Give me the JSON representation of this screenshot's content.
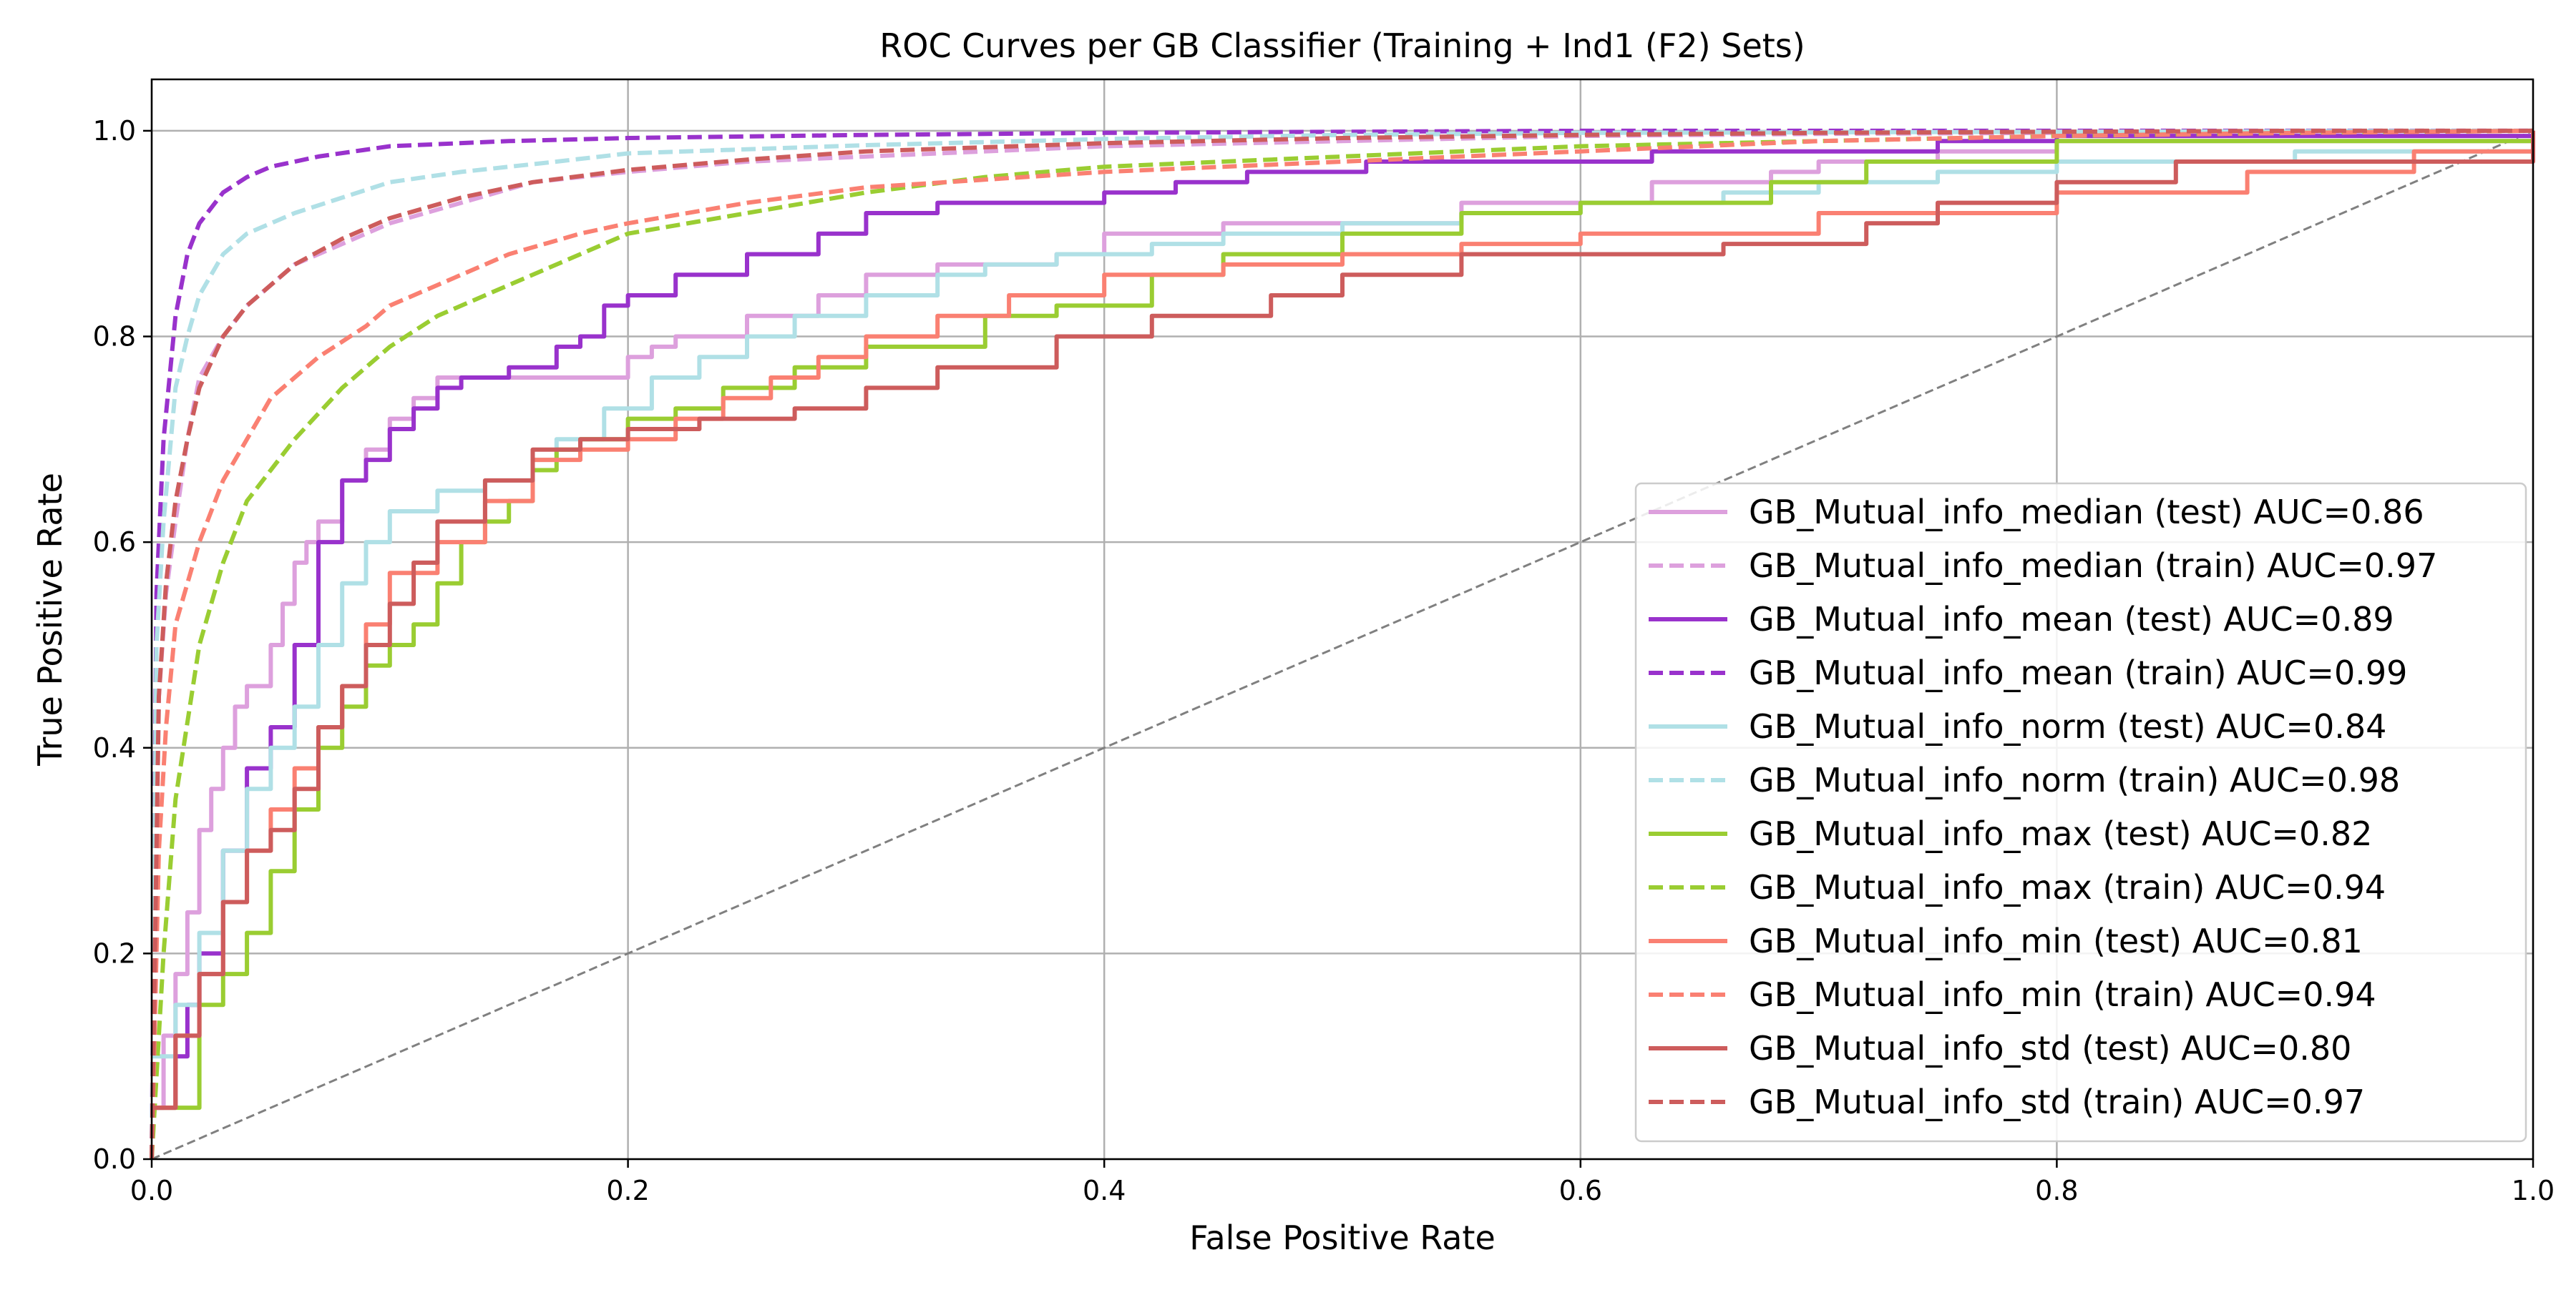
{
  "chart_data": {
    "type": "line",
    "title": "ROC Curves per GB Classifier (Training + Ind1 (F2) Sets)",
    "xlabel": "False Positive Rate",
    "ylabel": "True Positive Rate",
    "xlim": [
      0,
      1
    ],
    "ylim": [
      0,
      1.0
    ],
    "xticks": [
      "0.0",
      "0.2",
      "0.4",
      "0.6",
      "0.8",
      "1.0"
    ],
    "yticks": [
      "0.0",
      "0.2",
      "0.4",
      "0.6",
      "0.8",
      "1.0"
    ],
    "grid": true,
    "legend_position": "lower-right",
    "diagonal": {
      "x": [
        0,
        1
      ],
      "y": [
        0,
        1
      ],
      "color": "#808080",
      "style": "dashed"
    },
    "series": [
      {
        "name": "GB_Mutual_info_median (test) AUC=0.86",
        "color": "#DDA0DD",
        "style": "solid",
        "step": true,
        "x": [
          0,
          0.005,
          0.01,
          0.015,
          0.02,
          0.025,
          0.03,
          0.035,
          0.04,
          0.05,
          0.055,
          0.06,
          0.065,
          0.07,
          0.08,
          0.09,
          0.1,
          0.11,
          0.12,
          0.15,
          0.2,
          0.21,
          0.22,
          0.25,
          0.28,
          0.3,
          0.33,
          0.38,
          0.4,
          0.45,
          0.55,
          0.63,
          0.68,
          0.7,
          0.75,
          0.8,
          1.0
        ],
        "y": [
          0.05,
          0.12,
          0.18,
          0.24,
          0.32,
          0.36,
          0.4,
          0.44,
          0.46,
          0.5,
          0.54,
          0.58,
          0.6,
          0.62,
          0.66,
          0.69,
          0.72,
          0.74,
          0.76,
          0.76,
          0.78,
          0.79,
          0.8,
          0.82,
          0.84,
          0.86,
          0.87,
          0.88,
          0.9,
          0.91,
          0.93,
          0.95,
          0.96,
          0.97,
          0.98,
          0.99,
          1.0
        ]
      },
      {
        "name": "GB_Mutual_info_median (train) AUC=0.97",
        "color": "#DDA0DD",
        "style": "dashed",
        "step": false,
        "x": [
          0,
          0.003,
          0.006,
          0.01,
          0.015,
          0.02,
          0.03,
          0.04,
          0.06,
          0.08,
          0.1,
          0.13,
          0.16,
          0.2,
          0.25,
          0.3,
          0.4,
          0.5,
          0.6,
          0.7,
          0.8,
          0.9,
          1.0
        ],
        "y": [
          0,
          0.45,
          0.55,
          0.62,
          0.7,
          0.76,
          0.8,
          0.83,
          0.87,
          0.89,
          0.91,
          0.93,
          0.95,
          0.96,
          0.97,
          0.975,
          0.985,
          0.99,
          0.995,
          0.997,
          0.998,
          0.999,
          1.0
        ]
      },
      {
        "name": "GB_Mutual_info_mean (test) AUC=0.89",
        "color": "#9932CC",
        "style": "solid",
        "step": true,
        "x": [
          0,
          0.01,
          0.015,
          0.02,
          0.03,
          0.04,
          0.05,
          0.06,
          0.07,
          0.08,
          0.09,
          0.1,
          0.11,
          0.12,
          0.13,
          0.15,
          0.17,
          0.18,
          0.19,
          0.2,
          0.22,
          0.25,
          0.28,
          0.3,
          0.33,
          0.4,
          0.43,
          0.46,
          0.51,
          0.55,
          0.63,
          0.7,
          0.75,
          0.8,
          1.0
        ],
        "y": [
          0.05,
          0.1,
          0.15,
          0.2,
          0.3,
          0.38,
          0.42,
          0.5,
          0.6,
          0.66,
          0.68,
          0.71,
          0.73,
          0.75,
          0.76,
          0.77,
          0.79,
          0.8,
          0.83,
          0.84,
          0.86,
          0.88,
          0.9,
          0.92,
          0.93,
          0.94,
          0.95,
          0.96,
          0.97,
          0.97,
          0.98,
          0.98,
          0.99,
          0.995,
          1.0
        ]
      },
      {
        "name": "GB_Mutual_info_mean (train) AUC=0.99",
        "color": "#9932CC",
        "style": "dashed",
        "step": false,
        "x": [
          0,
          0.002,
          0.005,
          0.01,
          0.015,
          0.02,
          0.03,
          0.04,
          0.05,
          0.07,
          0.1,
          0.15,
          0.2,
          0.3,
          0.4,
          0.5,
          0.6,
          0.8,
          1.0
        ],
        "y": [
          0,
          0.55,
          0.7,
          0.82,
          0.88,
          0.91,
          0.94,
          0.955,
          0.965,
          0.975,
          0.985,
          0.99,
          0.993,
          0.996,
          0.998,
          0.999,
          1.0,
          1.0,
          1.0
        ]
      },
      {
        "name": "GB_Mutual_info_norm (test) AUC=0.84",
        "color": "#B0E0E6",
        "style": "solid",
        "step": true,
        "x": [
          0,
          0.01,
          0.02,
          0.03,
          0.04,
          0.05,
          0.06,
          0.07,
          0.08,
          0.09,
          0.1,
          0.12,
          0.14,
          0.16,
          0.17,
          0.19,
          0.21,
          0.23,
          0.25,
          0.27,
          0.3,
          0.33,
          0.35,
          0.38,
          0.42,
          0.45,
          0.5,
          0.55,
          0.6,
          0.66,
          0.7,
          0.75,
          0.8,
          0.9,
          1.0
        ],
        "y": [
          0.1,
          0.15,
          0.22,
          0.3,
          0.36,
          0.4,
          0.44,
          0.5,
          0.56,
          0.6,
          0.63,
          0.65,
          0.66,
          0.68,
          0.7,
          0.73,
          0.76,
          0.78,
          0.8,
          0.82,
          0.84,
          0.86,
          0.87,
          0.88,
          0.89,
          0.9,
          0.91,
          0.92,
          0.93,
          0.94,
          0.95,
          0.96,
          0.97,
          0.98,
          1.0
        ]
      },
      {
        "name": "GB_Mutual_info_norm (train) AUC=0.98",
        "color": "#B0E0E6",
        "style": "dashed",
        "step": false,
        "x": [
          0,
          0.002,
          0.005,
          0.01,
          0.015,
          0.02,
          0.03,
          0.04,
          0.06,
          0.08,
          0.1,
          0.13,
          0.17,
          0.2,
          0.3,
          0.4,
          0.5,
          0.6,
          0.8,
          1.0
        ],
        "y": [
          0,
          0.5,
          0.62,
          0.75,
          0.8,
          0.84,
          0.88,
          0.9,
          0.92,
          0.935,
          0.95,
          0.96,
          0.97,
          0.978,
          0.986,
          0.992,
          0.996,
          0.998,
          0.999,
          1.0
        ]
      },
      {
        "name": "GB_Mutual_info_max (test) AUC=0.82",
        "color": "#9ACD32",
        "style": "solid",
        "step": true,
        "x": [
          0,
          0.02,
          0.03,
          0.04,
          0.05,
          0.06,
          0.07,
          0.08,
          0.09,
          0.1,
          0.11,
          0.12,
          0.13,
          0.14,
          0.15,
          0.16,
          0.17,
          0.18,
          0.2,
          0.22,
          0.24,
          0.27,
          0.3,
          0.35,
          0.38,
          0.42,
          0.45,
          0.5,
          0.55,
          0.6,
          0.68,
          0.72,
          0.8,
          1.0
        ],
        "y": [
          0.05,
          0.15,
          0.18,
          0.22,
          0.28,
          0.34,
          0.4,
          0.44,
          0.48,
          0.5,
          0.52,
          0.56,
          0.6,
          0.62,
          0.64,
          0.67,
          0.69,
          0.7,
          0.72,
          0.73,
          0.75,
          0.77,
          0.79,
          0.82,
          0.83,
          0.86,
          0.88,
          0.9,
          0.92,
          0.93,
          0.95,
          0.97,
          0.99,
          1.0
        ]
      },
      {
        "name": "GB_Mutual_info_max (train) AUC=0.94",
        "color": "#9ACD32",
        "style": "dashed",
        "step": false,
        "x": [
          0,
          0.005,
          0.01,
          0.02,
          0.03,
          0.04,
          0.06,
          0.08,
          0.1,
          0.12,
          0.15,
          0.18,
          0.2,
          0.25,
          0.3,
          0.35,
          0.4,
          0.5,
          0.6,
          0.7,
          0.8,
          0.9,
          1.0
        ],
        "y": [
          0,
          0.2,
          0.35,
          0.5,
          0.58,
          0.64,
          0.7,
          0.75,
          0.79,
          0.82,
          0.85,
          0.88,
          0.9,
          0.92,
          0.94,
          0.955,
          0.965,
          0.975,
          0.985,
          0.99,
          0.995,
          0.998,
          1.0
        ]
      },
      {
        "name": "GB_Mutual_info_min (test) AUC=0.81",
        "color": "#FA8072",
        "style": "solid",
        "step": true,
        "x": [
          0,
          0.01,
          0.02,
          0.03,
          0.04,
          0.05,
          0.06,
          0.07,
          0.08,
          0.09,
          0.1,
          0.12,
          0.14,
          0.16,
          0.18,
          0.2,
          0.22,
          0.24,
          0.26,
          0.28,
          0.3,
          0.33,
          0.36,
          0.4,
          0.45,
          0.5,
          0.55,
          0.6,
          0.7,
          0.8,
          0.88,
          0.95,
          1.0
        ],
        "y": [
          0.05,
          0.12,
          0.18,
          0.25,
          0.3,
          0.34,
          0.38,
          0.42,
          0.46,
          0.52,
          0.57,
          0.6,
          0.64,
          0.68,
          0.69,
          0.7,
          0.72,
          0.74,
          0.76,
          0.78,
          0.8,
          0.82,
          0.84,
          0.86,
          0.87,
          0.88,
          0.89,
          0.9,
          0.92,
          0.94,
          0.96,
          0.98,
          1.0
        ]
      },
      {
        "name": "GB_Mutual_info_min (train) AUC=0.94",
        "color": "#FA8072",
        "style": "dashed",
        "step": false,
        "x": [
          0,
          0.003,
          0.006,
          0.01,
          0.02,
          0.03,
          0.04,
          0.05,
          0.07,
          0.09,
          0.1,
          0.12,
          0.15,
          0.18,
          0.2,
          0.25,
          0.3,
          0.4,
          0.5,
          0.6,
          0.7,
          0.8,
          0.9,
          1.0
        ],
        "y": [
          0,
          0.3,
          0.42,
          0.52,
          0.6,
          0.66,
          0.7,
          0.74,
          0.78,
          0.81,
          0.83,
          0.85,
          0.88,
          0.9,
          0.91,
          0.93,
          0.945,
          0.96,
          0.97,
          0.98,
          0.99,
          0.995,
          0.998,
          1.0
        ]
      },
      {
        "name": "GB_Mutual_info_std (test) AUC=0.80",
        "color": "#CD5C5C",
        "style": "solid",
        "step": true,
        "x": [
          0,
          0.01,
          0.02,
          0.03,
          0.04,
          0.05,
          0.06,
          0.07,
          0.08,
          0.09,
          0.1,
          0.11,
          0.12,
          0.14,
          0.16,
          0.18,
          0.2,
          0.23,
          0.27,
          0.3,
          0.33,
          0.38,
          0.42,
          0.47,
          0.5,
          0.55,
          0.6,
          0.66,
          0.72,
          0.75,
          0.8,
          0.85,
          1.0
        ],
        "y": [
          0.05,
          0.12,
          0.18,
          0.25,
          0.3,
          0.32,
          0.36,
          0.42,
          0.46,
          0.5,
          0.54,
          0.58,
          0.62,
          0.66,
          0.69,
          0.7,
          0.71,
          0.72,
          0.73,
          0.75,
          0.77,
          0.8,
          0.82,
          0.84,
          0.86,
          0.88,
          0.88,
          0.89,
          0.91,
          0.93,
          0.95,
          0.97,
          1.0
        ]
      },
      {
        "name": "GB_Mutual_info_std (train) AUC=0.97",
        "color": "#CD5C5C",
        "style": "dashed",
        "step": false,
        "x": [
          0,
          0.003,
          0.006,
          0.01,
          0.015,
          0.02,
          0.03,
          0.04,
          0.06,
          0.08,
          0.1,
          0.13,
          0.16,
          0.2,
          0.25,
          0.3,
          0.4,
          0.5,
          0.6,
          0.7,
          0.8,
          0.9,
          1.0
        ],
        "y": [
          0,
          0.45,
          0.56,
          0.64,
          0.7,
          0.75,
          0.8,
          0.83,
          0.87,
          0.895,
          0.915,
          0.935,
          0.95,
          0.962,
          0.972,
          0.98,
          0.988,
          0.993,
          0.996,
          0.998,
          0.999,
          1.0,
          1.0
        ]
      }
    ]
  }
}
